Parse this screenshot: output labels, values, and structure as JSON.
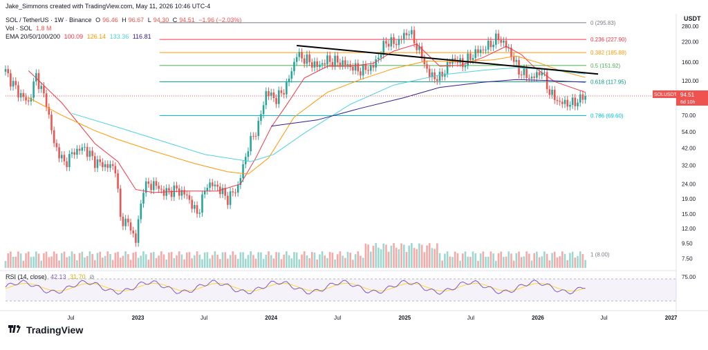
{
  "header": {
    "author_line": "Jake_Simmons created with TradingView.com, May 11, 2026 10:46 UTC-4",
    "symbol_line": "SOL / TetherUS · 1W · Binance",
    "ohlc": {
      "o_label": "O",
      "o": "96.46",
      "h_label": "H",
      "h": "96.67",
      "l_label": "L",
      "l": "94.30",
      "c_label": "C",
      "c": "94.51",
      "change": "−1.96 (−2.03%)"
    },
    "volume_line": {
      "label": "Vol · SOL",
      "value": "1.8 M"
    },
    "ema_line": {
      "label": "EMA 20/50/100/200",
      "v20": "100.09",
      "v50": "126.14",
      "v100": "133.36",
      "v200": "116.81"
    }
  },
  "axis_currency": "USDT",
  "colors": {
    "up": "#26a69a",
    "down": "#ef5350",
    "vol_up": "#9cd7d0",
    "vol_down": "#f7a9a7",
    "ema20": "#f23645",
    "ema50": "#ff9800",
    "ema100": "#4dd0e1",
    "ema200": "#311b92",
    "rsi": "#7e57c2",
    "rsi_ma": "#fdd835",
    "trend": "#000000"
  },
  "price_label": {
    "symbol": "SOLUSDT",
    "price": "94.51",
    "countdown": "6d 10h"
  },
  "rsi": {
    "title": "RSI (14, close)",
    "value": "42.13",
    "ma_value": "31.70",
    "ticks": [
      "75.00"
    ]
  },
  "chart_data": {
    "type": "candlestick",
    "interval": "1W",
    "y_scale": "log",
    "ylim": [
      6.5,
      305
    ],
    "y_ticks": [
      7.5,
      9.5,
      12,
      15,
      19,
      24,
      32,
      42,
      54,
      70,
      90,
      120,
      160,
      220,
      280
    ],
    "y_tick_labels": [
      "7.50",
      "9.50",
      "12.00",
      "15.00",
      "19.00",
      "24.00",
      "32.00",
      "42.00",
      "54.00",
      "70.00",
      "90.00",
      "120.00",
      "160.00",
      "220.00",
      "280.00"
    ],
    "x_labels": [
      {
        "date": "2022-07-01",
        "label": "Jul"
      },
      {
        "date": "2023-01-01",
        "label": "2023"
      },
      {
        "date": "2023-07-01",
        "label": "Jul"
      },
      {
        "date": "2024-01-01",
        "label": "2024"
      },
      {
        "date": "2024-07-01",
        "label": "Jul"
      },
      {
        "date": "2025-01-01",
        "label": "2025"
      },
      {
        "date": "2025-07-01",
        "label": "Jul"
      },
      {
        "date": "2026-01-01",
        "label": "2026"
      },
      {
        "date": "2026-07-01",
        "label": "Jul"
      },
      {
        "date": "2027-01-01",
        "label": "2027"
      }
    ],
    "fib_levels": [
      {
        "ratio": "0",
        "price": 295.83,
        "label": "0 (295.83)",
        "color": "#787b86"
      },
      {
        "ratio": "0.236",
        "price": 227.9,
        "label": "0.236 (227.90)",
        "color": "#f23645"
      },
      {
        "ratio": "0.382",
        "price": 185.88,
        "label": "0.382 (185.88)",
        "color": "#ff9800"
      },
      {
        "ratio": "0.5",
        "price": 151.92,
        "label": "0.5 (151.92)",
        "color": "#4caf50"
      },
      {
        "ratio": "0.618",
        "price": 117.95,
        "label": "0.618 (117.95)",
        "color": "#089981"
      },
      {
        "ratio": "0.786",
        "price": 69.6,
        "label": "0.786 (69.60)",
        "color": "#00bcd4"
      },
      {
        "ratio": "1",
        "price": 8.0,
        "label": "1 (8.00)",
        "color": "#787b86"
      }
    ],
    "trendline": {
      "from": {
        "date": "2024-03-11",
        "price": 207
      },
      "to": {
        "date": "2026-06-15",
        "price": 133
      }
    },
    "series": [
      {
        "name": "EMA 20",
        "points": [
          [
            "2022-03-07",
            140
          ],
          [
            "2022-06-06",
            85
          ],
          [
            "2022-09-05",
            45
          ],
          [
            "2022-11-07",
            34
          ],
          [
            "2022-12-26",
            22
          ],
          [
            "2023-02-13",
            21
          ],
          [
            "2023-05-08",
            21.5
          ],
          [
            "2023-08-07",
            21.5
          ],
          [
            "2023-10-09",
            24
          ],
          [
            "2023-11-20",
            36
          ],
          [
            "2024-01-01",
            58
          ],
          [
            "2024-02-12",
            82
          ],
          [
            "2024-04-01",
            125
          ],
          [
            "2024-06-03",
            150
          ],
          [
            "2024-08-05",
            150
          ],
          [
            "2024-10-07",
            157
          ],
          [
            "2024-12-02",
            190
          ],
          [
            "2025-02-03",
            212
          ],
          [
            "2025-04-07",
            150
          ],
          [
            "2025-06-02",
            152
          ],
          [
            "2025-08-04",
            172
          ],
          [
            "2025-10-06",
            205
          ],
          [
            "2025-11-17",
            180
          ],
          [
            "2025-12-22",
            148
          ],
          [
            "2026-02-16",
            118
          ],
          [
            "2026-05-11",
            100
          ]
        ]
      },
      {
        "name": "EMA 50",
        "points": [
          [
            "2022-03-07",
            92
          ],
          [
            "2022-06-06",
            70
          ],
          [
            "2022-09-05",
            55
          ],
          [
            "2022-11-07",
            48
          ],
          [
            "2023-02-13",
            40
          ],
          [
            "2023-06-05",
            33
          ],
          [
            "2023-09-04",
            29
          ],
          [
            "2023-10-30",
            28
          ],
          [
            "2023-12-25",
            36
          ],
          [
            "2024-03-04",
            68
          ],
          [
            "2024-06-03",
            100
          ],
          [
            "2024-09-02",
            122
          ],
          [
            "2024-12-02",
            145
          ],
          [
            "2025-03-03",
            163
          ],
          [
            "2025-06-02",
            161
          ],
          [
            "2025-09-01",
            166
          ],
          [
            "2025-11-03",
            176
          ],
          [
            "2026-01-05",
            158
          ],
          [
            "2026-03-02",
            140
          ],
          [
            "2026-05-11",
            126
          ]
        ]
      },
      {
        "name": "EMA 100",
        "points": [
          [
            "2022-07-04",
            72
          ],
          [
            "2022-11-07",
            58
          ],
          [
            "2023-03-06",
            47
          ],
          [
            "2023-07-03",
            38
          ],
          [
            "2023-11-06",
            34
          ],
          [
            "2024-01-08",
            38
          ],
          [
            "2024-04-01",
            53
          ],
          [
            "2024-08-05",
            83
          ],
          [
            "2024-12-02",
            112
          ],
          [
            "2025-04-07",
            131
          ],
          [
            "2025-08-04",
            141
          ],
          [
            "2025-11-03",
            147
          ],
          [
            "2026-02-02",
            142
          ],
          [
            "2026-05-11",
            133
          ]
        ]
      },
      {
        "name": "EMA 200",
        "points": [
          [
            "2024-01-01",
            59
          ],
          [
            "2024-05-06",
            65
          ],
          [
            "2024-09-02",
            78
          ],
          [
            "2024-12-30",
            92
          ],
          [
            "2025-04-07",
            108
          ],
          [
            "2025-08-04",
            117
          ],
          [
            "2025-11-03",
            122
          ],
          [
            "2026-02-02",
            120
          ],
          [
            "2026-05-11",
            117
          ]
        ]
      }
    ],
    "candles_weekly_close": [
      [
        "2022-01-03",
        138
      ],
      [
        "2022-02-07",
        100
      ],
      [
        "2022-03-07",
        85
      ],
      [
        "2022-03-28",
        130
      ],
      [
        "2022-04-25",
        85
      ],
      [
        "2022-05-16",
        45
      ],
      [
        "2022-06-13",
        33
      ],
      [
        "2022-07-11",
        40
      ],
      [
        "2022-08-08",
        42
      ],
      [
        "2022-09-05",
        34
      ],
      [
        "2022-10-03",
        32
      ],
      [
        "2022-10-31",
        31
      ],
      [
        "2022-11-14",
        14
      ],
      [
        "2022-12-05",
        13
      ],
      [
        "2022-12-26",
        10
      ],
      [
        "2023-01-16",
        23
      ],
      [
        "2023-02-13",
        24
      ],
      [
        "2023-03-13",
        21
      ],
      [
        "2023-04-17",
        22
      ],
      [
        "2023-05-15",
        20
      ],
      [
        "2023-06-12",
        15
      ],
      [
        "2023-07-10",
        24
      ],
      [
        "2023-08-07",
        23
      ],
      [
        "2023-09-04",
        19
      ],
      [
        "2023-10-02",
        23
      ],
      [
        "2023-10-30",
        43
      ],
      [
        "2023-11-27",
        60
      ],
      [
        "2023-12-18",
        100
      ],
      [
        "2024-01-15",
        90
      ],
      [
        "2024-02-12",
        110
      ],
      [
        "2024-03-11",
        180
      ],
      [
        "2024-04-08",
        165
      ],
      [
        "2024-05-06",
        150
      ],
      [
        "2024-06-03",
        165
      ],
      [
        "2024-07-08",
        160
      ],
      [
        "2024-08-05",
        150
      ],
      [
        "2024-09-02",
        140
      ],
      [
        "2024-10-07",
        150
      ],
      [
        "2024-11-11",
        220
      ],
      [
        "2024-12-09",
        215
      ],
      [
        "2025-01-13",
        260
      ],
      [
        "2025-02-10",
        190
      ],
      [
        "2025-03-10",
        130
      ],
      [
        "2025-04-07",
        125
      ],
      [
        "2025-05-12",
        170
      ],
      [
        "2025-06-09",
        155
      ],
      [
        "2025-07-14",
        185
      ],
      [
        "2025-08-11",
        200
      ],
      [
        "2025-09-15",
        235
      ],
      [
        "2025-10-13",
        195
      ],
      [
        "2025-11-10",
        140
      ],
      [
        "2025-12-15",
        124
      ],
      [
        "2026-01-12",
        140
      ],
      [
        "2026-02-02",
        100
      ],
      [
        "2026-03-02",
        85
      ],
      [
        "2026-04-06",
        84
      ],
      [
        "2026-05-11",
        94.51
      ]
    ]
  }
}
